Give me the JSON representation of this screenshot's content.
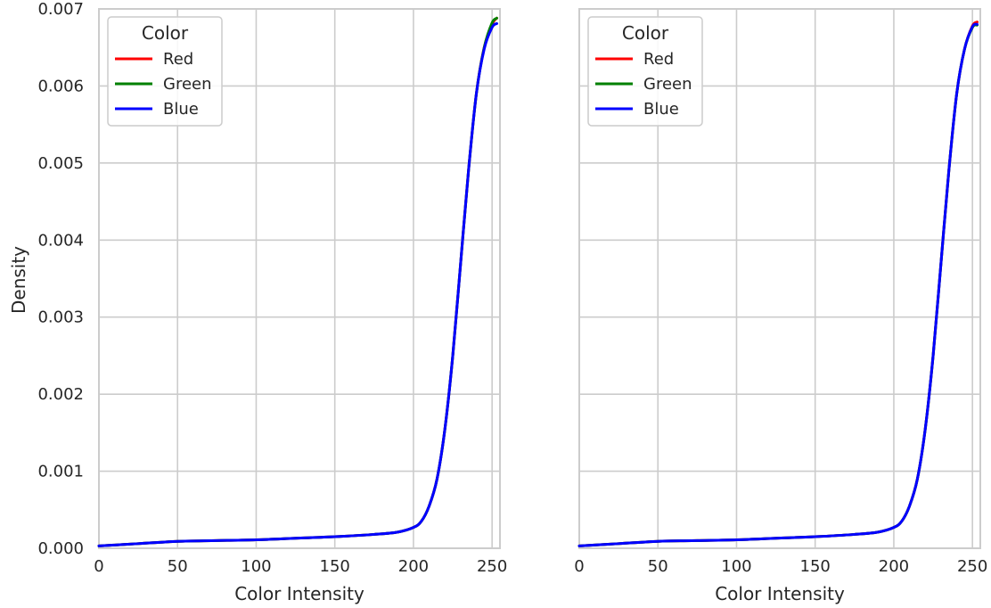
{
  "figure": {
    "ylabel": "Density"
  },
  "chart_data": [
    {
      "type": "line",
      "xlabel": "Color Intensity",
      "ylabel": "Density",
      "xlim": [
        0,
        255
      ],
      "ylim": [
        0,
        0.007
      ],
      "xticks": [
        "0",
        "50",
        "100",
        "150",
        "200",
        "250"
      ],
      "yticks": [
        "0.000",
        "0.001",
        "0.002",
        "0.003",
        "0.004",
        "0.005",
        "0.006",
        "0.007"
      ],
      "grid": true,
      "legend": {
        "title": "Color",
        "position": "top-left"
      },
      "x": [
        0,
        25,
        50,
        75,
        100,
        125,
        150,
        175,
        190,
        200,
        205,
        210,
        215,
        220,
        225,
        230,
        235,
        240,
        245,
        250,
        253
      ],
      "series": [
        {
          "name": "Red",
          "color": "#ff0000",
          "values": [
            3e-05,
            6e-05,
            9e-05,
            0.0001,
            0.00011,
            0.00013,
            0.00015,
            0.00018,
            0.00021,
            0.00027,
            0.00035,
            0.00055,
            0.0009,
            0.00155,
            0.0025,
            0.0037,
            0.0049,
            0.0059,
            0.0065,
            0.0068,
            0.00688
          ]
        },
        {
          "name": "Green",
          "color": "#008000",
          "values": [
            3e-05,
            6e-05,
            9e-05,
            0.0001,
            0.00011,
            0.00013,
            0.00015,
            0.00018,
            0.00021,
            0.00027,
            0.00035,
            0.00055,
            0.0009,
            0.00155,
            0.0025,
            0.0037,
            0.0049,
            0.0059,
            0.0065,
            0.00682,
            0.00688
          ]
        },
        {
          "name": "Blue",
          "color": "#0000ff",
          "values": [
            3e-05,
            6e-05,
            9e-05,
            0.0001,
            0.00011,
            0.00013,
            0.00015,
            0.00018,
            0.00021,
            0.00027,
            0.00035,
            0.00055,
            0.0009,
            0.00155,
            0.0025,
            0.0037,
            0.0049,
            0.0059,
            0.00648,
            0.00676,
            0.00681
          ]
        }
      ]
    },
    {
      "type": "line",
      "xlabel": "Color Intensity",
      "ylabel": "",
      "xlim": [
        0,
        255
      ],
      "ylim": [
        0,
        0.007
      ],
      "xticks": [
        "0",
        "50",
        "100",
        "150",
        "200",
        "250"
      ],
      "yticks": [],
      "grid": true,
      "legend": {
        "title": "Color",
        "position": "top-left"
      },
      "x": [
        0,
        25,
        50,
        75,
        100,
        125,
        150,
        175,
        190,
        200,
        205,
        210,
        215,
        220,
        225,
        230,
        235,
        240,
        245,
        250,
        253
      ],
      "series": [
        {
          "name": "Red",
          "color": "#ff0000",
          "values": [
            3e-05,
            6e-05,
            9e-05,
            0.0001,
            0.00011,
            0.00013,
            0.00015,
            0.00018,
            0.00021,
            0.00027,
            0.00035,
            0.00055,
            0.0009,
            0.00155,
            0.0025,
            0.0037,
            0.0049,
            0.0059,
            0.00648,
            0.00678,
            0.00683
          ]
        },
        {
          "name": "Green",
          "color": "#008000",
          "values": [
            3e-05,
            6e-05,
            9e-05,
            0.0001,
            0.00011,
            0.00013,
            0.00015,
            0.00018,
            0.00021,
            0.00027,
            0.00035,
            0.00055,
            0.0009,
            0.00155,
            0.0025,
            0.0037,
            0.0049,
            0.0059,
            0.00648,
            0.00676,
            0.00679
          ]
        },
        {
          "name": "Blue",
          "color": "#0000ff",
          "values": [
            3e-05,
            6e-05,
            9e-05,
            0.0001,
            0.00011,
            0.00013,
            0.00015,
            0.00018,
            0.00021,
            0.00027,
            0.00035,
            0.00055,
            0.0009,
            0.00155,
            0.0025,
            0.0037,
            0.0049,
            0.0059,
            0.00648,
            0.00677,
            0.0068
          ]
        }
      ]
    }
  ]
}
